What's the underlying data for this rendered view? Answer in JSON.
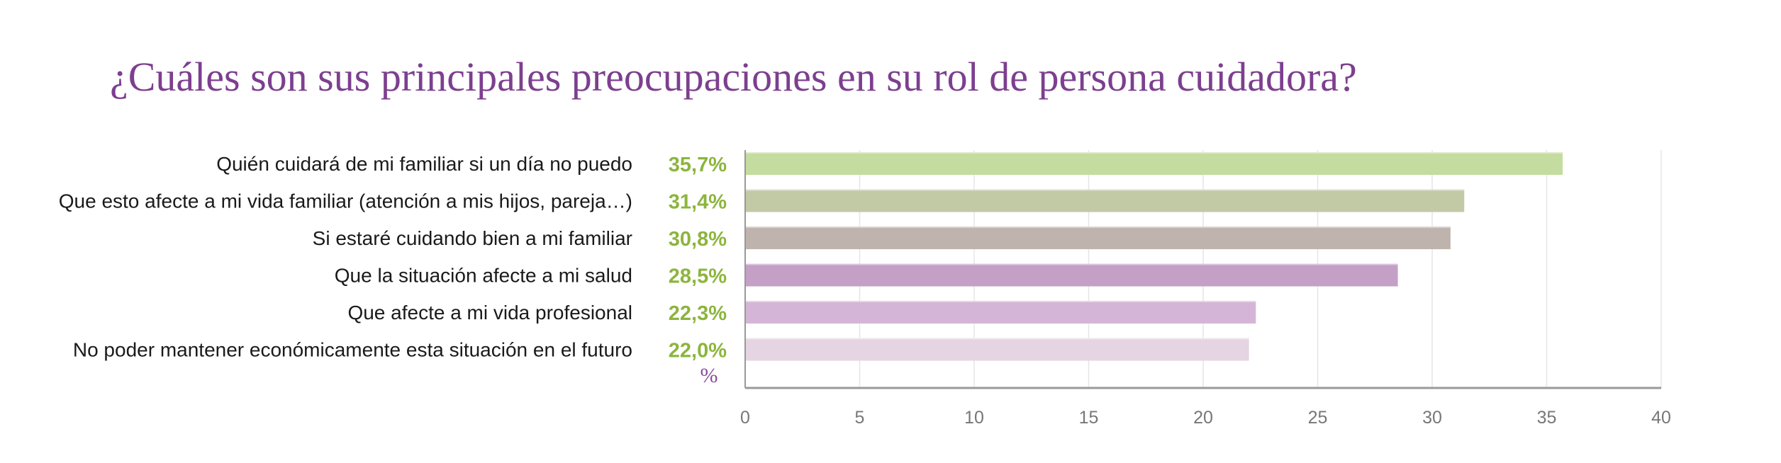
{
  "chart_data": {
    "type": "bar",
    "orientation": "horizontal",
    "title": "¿Cuáles son sus principales preocupaciones en su rol de persona cuidadora?",
    "categories": [
      "Quién cuidará de mi familiar si un día no puedo",
      "Que esto afecte a mi vida familiar (atención a mis hijos, pareja…)",
      "Si estaré cuidando bien a mi familiar",
      "Que la situación afecte a mi salud",
      "Que  afecte a mi vida profesional",
      "No poder mantener económicamente esta situación en el futuro"
    ],
    "values": [
      35.7,
      31.4,
      30.8,
      28.5,
      22.3,
      22.0
    ],
    "value_labels": [
      "35,7%",
      "31,4%",
      "30,8%",
      "28,5%",
      "22,3%",
      "22,0%"
    ],
    "bar_colors": [
      "#c5dca0",
      "#c2c9a5",
      "#bfb3ae",
      "#c49fc6",
      "#d5b5d7",
      "#e5d4e1"
    ],
    "unit_label": "%",
    "xlim": [
      0,
      40
    ],
    "xticks": [
      "0",
      "5",
      "10",
      "15",
      "20",
      "25",
      "30",
      "35",
      "40"
    ],
    "grid": true,
    "xlabel": "",
    "ylabel": ""
  }
}
